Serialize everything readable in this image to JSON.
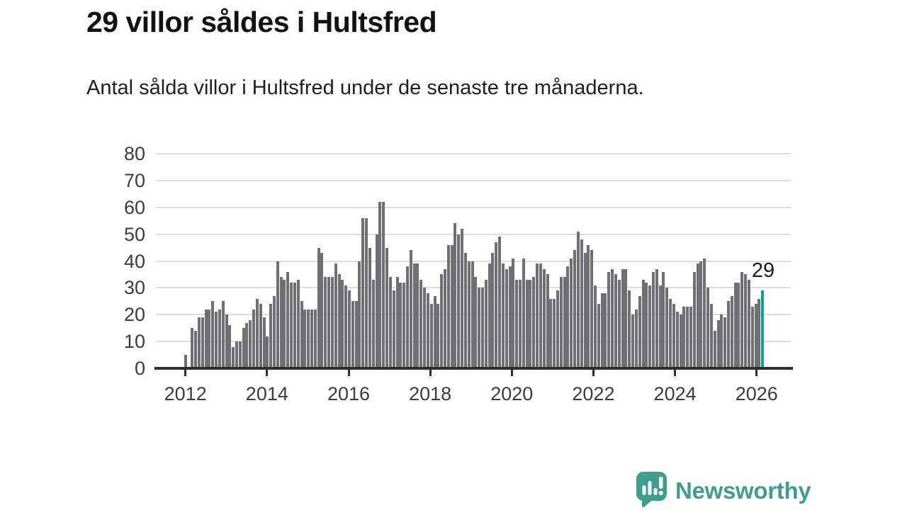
{
  "header": {
    "title": "29 villor såldes i Hultsfred",
    "subtitle": "Antal sålda villor i Hultsfred under de senaste tre månaderna."
  },
  "annotation": {
    "last_value_label": "29"
  },
  "branding": {
    "name": "Newsworthy",
    "icon": "bar-chart-speech-bubble-icon"
  },
  "colors": {
    "bar": "#707074",
    "highlight_bar": "#00a6a0",
    "brand_teal": "#3f9d90",
    "axis": "#2d2d2d",
    "gridline": "#dcdcdc",
    "text": "#1a1a1a"
  },
  "chart_data": {
    "type": "bar",
    "title": "29 villor såldes i Hultsfred",
    "subtitle": "Antal sålda villor i Hultsfred under de senaste tre månaderna.",
    "xlabel": "",
    "ylabel": "",
    "grid": true,
    "legend": false,
    "ylim": [
      0,
      80
    ],
    "y_ticks": [
      0,
      10,
      20,
      30,
      40,
      50,
      60,
      70,
      80
    ],
    "x_tick_labels": [
      "2012",
      "2014",
      "2016",
      "2018",
      "2020",
      "2022",
      "2024",
      "2026"
    ],
    "frequency": "monthly",
    "start_month": "2012-01",
    "end_month": "2026-02",
    "highlight_last_bar": true,
    "last_bar_label": "29",
    "values": [
      5,
      0,
      15,
      14,
      19,
      19,
      22,
      22,
      25,
      21,
      22,
      25,
      20,
      16,
      8,
      10,
      10,
      15,
      17,
      18,
      22,
      26,
      24,
      19,
      12,
      24,
      27,
      40,
      34,
      33,
      36,
      32,
      32,
      33,
      25,
      22,
      22,
      22,
      22,
      45,
      43,
      34,
      34,
      34,
      39,
      35,
      33,
      31,
      29,
      25,
      25,
      40,
      56,
      56,
      45,
      33,
      50,
      62,
      62,
      45,
      34,
      29,
      34,
      32,
      32,
      38,
      44,
      39,
      39,
      33,
      30,
      28,
      24,
      27,
      24,
      35,
      37,
      46,
      46,
      54,
      50,
      52,
      43,
      40,
      40,
      34,
      30,
      30,
      33,
      39,
      43,
      47,
      49,
      39,
      37,
      38,
      41,
      33,
      33,
      41,
      33,
      33,
      34,
      39,
      39,
      37,
      35,
      26,
      26,
      29,
      34,
      34,
      38,
      41,
      44,
      51,
      48,
      43,
      46,
      44,
      31,
      24,
      28,
      28,
      36,
      37,
      35,
      33,
      37,
      37,
      29,
      20,
      22,
      27,
      33,
      32,
      31,
      36,
      37,
      31,
      36,
      30,
      26,
      24,
      21,
      20,
      23,
      23,
      23,
      36,
      39,
      40,
      41,
      30,
      24,
      14,
      18,
      20,
      19,
      25,
      27,
      32,
      32,
      36,
      35,
      33,
      23,
      24,
      26,
      29
    ]
  }
}
